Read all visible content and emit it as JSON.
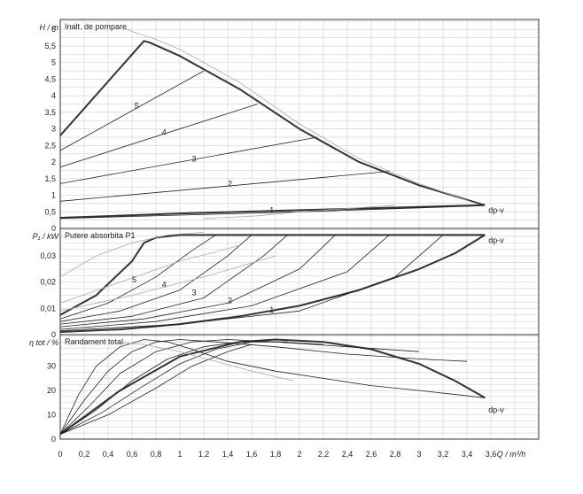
{
  "chart_data": [
    {
      "type": "line",
      "title": "Inalt. de pompare",
      "ylabel": "H / m",
      "xlabel": "Q / m³/h",
      "xlim": [
        0,
        4.0
      ],
      "ylim": [
        0,
        6.3
      ],
      "yticks": [
        "0",
        "0,5",
        "1",
        "1,5",
        "2",
        "2,5",
        "3",
        "3,5",
        "4",
        "4,5",
        "5",
        "5,5",
        "6"
      ],
      "yticks_values": [
        0,
        0.5,
        1,
        1.5,
        2,
        2.5,
        3,
        3.5,
        4,
        4.5,
        5,
        5.5,
        6
      ],
      "grid": true,
      "annotations": [
        {
          "text": "5",
          "x": 0.62,
          "y": 3.7
        },
        {
          "text": "4",
          "x": 0.85,
          "y": 2.9
        },
        {
          "text": "3",
          "x": 1.1,
          "y": 2.1
        },
        {
          "text": "2",
          "x": 1.4,
          "y": 1.35
        },
        {
          "text": "1",
          "x": 1.75,
          "y": 0.55
        },
        {
          "text": "dp-v",
          "x": 3.58,
          "y": 0.55
        }
      ],
      "series": [
        {
          "weight": "bold",
          "x": [
            0,
            0.7,
            0.75,
            1.0,
            1.5,
            2.0,
            2.5,
            3.0,
            3.55
          ],
          "y": [
            2.8,
            5.65,
            5.6,
            5.2,
            4.2,
            3.0,
            2.0,
            1.3,
            0.7
          ]
        },
        {
          "weight": "bold",
          "x": [
            0,
            1.0,
            2.0,
            3.0,
            3.55
          ],
          "y": [
            0.32,
            0.45,
            0.55,
            0.65,
            0.7
          ]
        },
        {
          "weight": "thin",
          "x": [
            0,
            1.2
          ],
          "y": [
            2.35,
            4.75
          ]
        },
        {
          "weight": "thin",
          "x": [
            0,
            1.65
          ],
          "y": [
            1.85,
            3.75
          ]
        },
        {
          "weight": "thin",
          "x": [
            0,
            2.15
          ],
          "y": [
            1.35,
            2.75
          ]
        },
        {
          "weight": "thin",
          "x": [
            0,
            2.75
          ],
          "y": [
            0.82,
            1.72
          ]
        },
        {
          "weight": "thin",
          "x": [
            0,
            1.0,
            2.0,
            3.0,
            3.5
          ],
          "y": [
            0.3,
            0.4,
            0.5,
            0.62,
            0.68
          ]
        },
        {
          "weight": "faint",
          "x": [
            0.55,
            0.8,
            1.0,
            1.5,
            2.0,
            2.5,
            3.0,
            3.5
          ],
          "y": [
            6.0,
            5.7,
            5.4,
            4.4,
            3.15,
            2.1,
            1.35,
            0.72
          ]
        },
        {
          "weight": "faint",
          "x": [
            1.2,
            1.5,
            1.65,
            2.0,
            2.2,
            2.8
          ],
          "y": [
            0.3,
            0.35,
            0.38,
            0.5,
            0.55,
            0.7
          ]
        }
      ]
    },
    {
      "type": "line",
      "title": "Putere absorbita P1",
      "ylabel": "P₁ / kW",
      "xlabel": "Q / m³/h",
      "xlim": [
        0,
        4.0
      ],
      "ylim": [
        0,
        0.0405
      ],
      "yticks": [
        "0",
        "0,01",
        "0,02",
        "0,03"
      ],
      "yticks_values": [
        0,
        0.01,
        0.02,
        0.03
      ],
      "grid": true,
      "annotations": [
        {
          "text": "5",
          "x": 0.6,
          "y": 0.021
        },
        {
          "text": "4",
          "x": 0.85,
          "y": 0.019
        },
        {
          "text": "3",
          "x": 1.1,
          "y": 0.016
        },
        {
          "text": "2",
          "x": 1.4,
          "y": 0.013
        },
        {
          "text": "1",
          "x": 1.75,
          "y": 0.0095
        },
        {
          "text": "dp-v",
          "x": 3.58,
          "y": 0.036
        }
      ],
      "series": [
        {
          "weight": "bold",
          "x": [
            0,
            0.3,
            0.6,
            0.7,
            0.8,
            1.0,
            2.0,
            3.0,
            3.55
          ],
          "y": [
            0.0075,
            0.015,
            0.028,
            0.035,
            0.037,
            0.038,
            0.038,
            0.038,
            0.038
          ]
        },
        {
          "weight": "bold",
          "x": [
            0,
            0.5,
            1.0,
            1.5,
            2.0,
            2.5,
            3.0,
            3.3,
            3.55
          ],
          "y": [
            0.001,
            0.002,
            0.004,
            0.007,
            0.011,
            0.017,
            0.025,
            0.031,
            0.038
          ]
        },
        {
          "weight": "thin",
          "x": [
            0,
            0.4,
            0.8,
            1.1,
            1.3
          ],
          "y": [
            0.006,
            0.012,
            0.022,
            0.032,
            0.038
          ]
        },
        {
          "weight": "thin",
          "x": [
            0,
            0.5,
            1.0,
            1.4,
            1.6
          ],
          "y": [
            0.005,
            0.009,
            0.017,
            0.03,
            0.038
          ]
        },
        {
          "weight": "thin",
          "x": [
            0,
            0.6,
            1.2,
            1.7,
            1.9
          ],
          "y": [
            0.004,
            0.007,
            0.014,
            0.03,
            0.038
          ]
        },
        {
          "weight": "thin",
          "x": [
            0,
            0.7,
            1.4,
            2.0,
            2.3
          ],
          "y": [
            0.003,
            0.006,
            0.012,
            0.025,
            0.038
          ]
        },
        {
          "weight": "thin",
          "x": [
            0,
            0.8,
            1.6,
            2.4,
            2.75
          ],
          "y": [
            0.002,
            0.005,
            0.011,
            0.024,
            0.038
          ]
        },
        {
          "weight": "thin",
          "x": [
            0,
            1.0,
            2.0,
            2.8,
            3.2
          ],
          "y": [
            0.0015,
            0.004,
            0.009,
            0.022,
            0.038
          ]
        },
        {
          "weight": "faint",
          "x": [
            0,
            0.3,
            0.6,
            0.9,
            1.2
          ],
          "y": [
            0.022,
            0.03,
            0.035,
            0.038,
            0.039
          ]
        },
        {
          "weight": "faint",
          "x": [
            0,
            0.5,
            1.0,
            1.5
          ],
          "y": [
            0.012,
            0.02,
            0.028,
            0.034
          ]
        },
        {
          "weight": "faint",
          "x": [
            0,
            0.6,
            1.2,
            1.8
          ],
          "y": [
            0.009,
            0.015,
            0.022,
            0.03
          ]
        }
      ]
    },
    {
      "type": "line",
      "title": "Randament total",
      "ylabel": "η tot / %",
      "xlabel": "Q / m³/h",
      "xlim": [
        0,
        4.0
      ],
      "ylim": [
        0,
        43
      ],
      "xticks": [
        "0",
        "0,2",
        "0,4",
        "0,6",
        "0,8",
        "1",
        "1,2",
        "1,4",
        "1,6",
        "1,8",
        "2",
        "2,2",
        "2,4",
        "2,6",
        "2,8",
        "3",
        "3,2",
        "3,4",
        "3,6"
      ],
      "xticks_values": [
        0,
        0.2,
        0.4,
        0.6,
        0.8,
        1.0,
        1.2,
        1.4,
        1.6,
        1.8,
        2.0,
        2.2,
        2.4,
        2.6,
        2.8,
        3.0,
        3.2,
        3.4,
        3.6
      ],
      "yticks": [
        "0",
        "10",
        "20",
        "30"
      ],
      "yticks_values": [
        0,
        10,
        20,
        30
      ],
      "grid": true,
      "annotations": [
        {
          "text": "dp-v",
          "x": 3.58,
          "y": 12
        }
      ],
      "series": [
        {
          "weight": "bold",
          "x": [
            0,
            0.5,
            1.0,
            1.5,
            1.8,
            2.2,
            2.6,
            3.0,
            3.3,
            3.55
          ],
          "y": [
            2,
            20,
            34,
            40,
            41,
            40,
            37,
            31,
            24,
            17
          ]
        },
        {
          "weight": "thin",
          "x": [
            0,
            0.15,
            0.3,
            0.5,
            0.7,
            0.9,
            1.1,
            1.4,
            1.8,
            2.2,
            2.6,
            3.0,
            3.55
          ],
          "y": [
            2,
            18,
            30,
            38,
            41,
            40,
            37,
            32,
            28,
            25,
            22,
            20,
            17
          ]
        },
        {
          "weight": "thin",
          "x": [
            0,
            0.2,
            0.4,
            0.6,
            0.8,
            1.0,
            1.3,
            1.8,
            2.4,
            3.0,
            3.4
          ],
          "y": [
            2,
            16,
            28,
            36,
            40,
            41,
            40,
            38,
            35,
            33,
            32
          ]
        },
        {
          "weight": "thin",
          "x": [
            0,
            0.25,
            0.5,
            0.8,
            1.1,
            1.4,
            1.8,
            2.4,
            3.0
          ],
          "y": [
            2,
            14,
            27,
            36,
            40,
            41,
            40,
            38,
            36
          ]
        },
        {
          "weight": "thin",
          "x": [
            0,
            0.3,
            0.6,
            0.9,
            1.2,
            1.5,
            1.8,
            2.2
          ],
          "y": [
            2,
            12,
            24,
            33,
            38,
            40,
            40,
            39
          ]
        },
        {
          "weight": "thin",
          "x": [
            0,
            0.35,
            0.7,
            1.0,
            1.3,
            1.6,
            1.9
          ],
          "y": [
            2,
            11,
            22,
            31,
            37,
            40,
            40
          ]
        },
        {
          "weight": "thin",
          "x": [
            0,
            0.4,
            0.8,
            1.1,
            1.4,
            1.6
          ],
          "y": [
            2,
            10,
            21,
            30,
            36,
            39
          ]
        },
        {
          "weight": "faint",
          "x": [
            0.4,
            0.7,
            1.0,
            1.3,
            1.6,
            1.95
          ],
          "y": [
            40,
            39,
            36,
            32,
            28,
            24
          ]
        }
      ]
    }
  ]
}
